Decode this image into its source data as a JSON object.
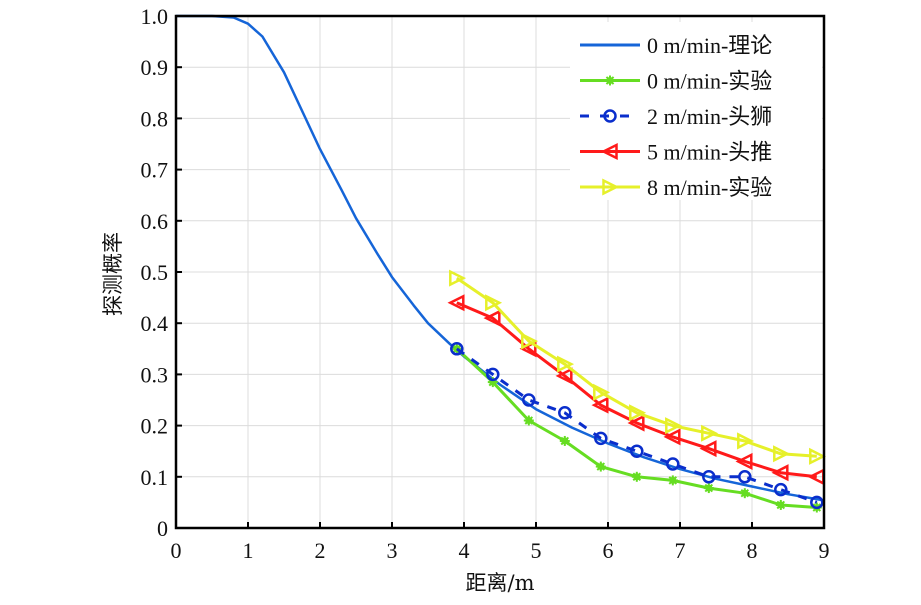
{
  "chart_data": {
    "type": "line",
    "title": "",
    "xlabel": "距离/m",
    "ylabel": "探测概率",
    "xlim": [
      0,
      9
    ],
    "ylim": [
      0,
      1.0
    ],
    "xticks": [
      0,
      1,
      2,
      3,
      4,
      5,
      6,
      7,
      8,
      9
    ],
    "xtick_labels": [
      "0",
      "1",
      "2",
      "3",
      "4",
      "5",
      "6",
      "7",
      "8",
      "9"
    ],
    "yticks": [
      0,
      0.1,
      0.2,
      0.3,
      0.4,
      0.5,
      0.6,
      0.7,
      0.8,
      0.9,
      1.0
    ],
    "ytick_labels": [
      "0",
      "0.1",
      "0.2",
      "0.3",
      "0.4",
      "0.5",
      "0.6",
      "0.7",
      "0.8",
      "0.9",
      "1.0"
    ],
    "grid": true,
    "legend_position": "top-right",
    "series": [
      {
        "name": "0 m/min-理论",
        "color": "#1565d8",
        "marker": "none",
        "dash": "solid",
        "x": [
          0,
          0.5,
          0.8,
          1.0,
          1.2,
          1.5,
          1.8,
          2.0,
          2.3,
          2.5,
          2.8,
          3.0,
          3.3,
          3.5,
          3.8,
          4.0,
          4.5,
          5.0,
          5.5,
          6.0,
          6.5,
          7.0,
          7.5,
          8.0,
          8.5,
          9.0
        ],
        "y": [
          1.0,
          1.0,
          0.997,
          0.985,
          0.96,
          0.89,
          0.8,
          0.74,
          0.66,
          0.605,
          0.535,
          0.49,
          0.435,
          0.4,
          0.36,
          0.335,
          0.28,
          0.232,
          0.196,
          0.165,
          0.138,
          0.115,
          0.096,
          0.081,
          0.066,
          0.054
        ]
      },
      {
        "name": "0 m/min-实验",
        "color": "#66dd22",
        "marker": "asterisk",
        "dash": "solid",
        "x": [
          3.9,
          4.4,
          4.9,
          5.4,
          5.9,
          6.4,
          6.9,
          7.4,
          7.9,
          8.4,
          8.9
        ],
        "y": [
          0.35,
          0.285,
          0.21,
          0.17,
          0.12,
          0.1,
          0.093,
          0.078,
          0.068,
          0.045,
          0.04
        ]
      },
      {
        "name": "2 m/min-头狮",
        "color": "#0a2ecc",
        "marker": "circle",
        "dash": "dashed",
        "x": [
          3.9,
          4.4,
          4.9,
          5.4,
          5.9,
          6.4,
          6.9,
          7.4,
          7.9,
          8.4,
          8.9
        ],
        "y": [
          0.35,
          0.3,
          0.25,
          0.225,
          0.175,
          0.15,
          0.125,
          0.1,
          0.1,
          0.075,
          0.05
        ]
      },
      {
        "name": "5 m/min-头推",
        "color": "#ff1a1a",
        "marker": "triangle-left",
        "dash": "solid",
        "x": [
          3.9,
          4.4,
          4.9,
          5.4,
          5.9,
          6.4,
          6.9,
          7.4,
          7.9,
          8.4,
          8.9
        ],
        "y": [
          0.44,
          0.41,
          0.35,
          0.297,
          0.24,
          0.205,
          0.178,
          0.155,
          0.13,
          0.108,
          0.1
        ]
      },
      {
        "name": "8 m/min-实验",
        "color": "#e6f02a",
        "marker": "triangle-right",
        "dash": "solid",
        "x": [
          3.9,
          4.4,
          4.9,
          5.4,
          5.9,
          6.4,
          6.9,
          7.4,
          7.9,
          8.4,
          8.9
        ],
        "y": [
          0.488,
          0.44,
          0.365,
          0.32,
          0.265,
          0.225,
          0.2,
          0.185,
          0.17,
          0.145,
          0.14
        ]
      }
    ]
  }
}
